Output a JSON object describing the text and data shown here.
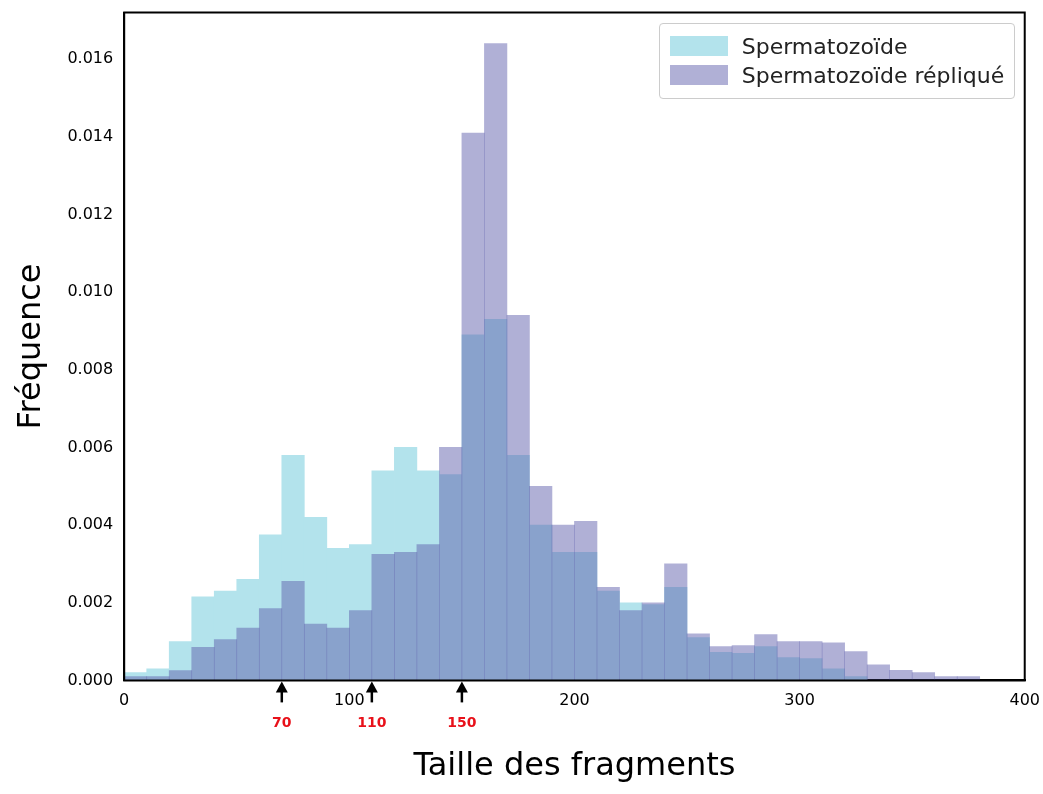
{
  "chart_data": {
    "type": "histogram",
    "xlabel": "Taille des fragments",
    "ylabel": "Fréquence",
    "bins": [
      0,
      10,
      20,
      30,
      40,
      50,
      60,
      70,
      80,
      90,
      100,
      110,
      120,
      130,
      140,
      150,
      160,
      170,
      180,
      190,
      200,
      210,
      220,
      230,
      240,
      250,
      260,
      270,
      280,
      290,
      300,
      310,
      320,
      330,
      340,
      350,
      360,
      370,
      380
    ],
    "series": [
      {
        "name": "Spermatozoïde",
        "color": "#b3e3ec",
        "values": [
          0.0002,
          0.0003,
          0.001,
          0.00215,
          0.0023,
          0.0026,
          0.00375,
          0.0058,
          0.0042,
          0.0034,
          0.0035,
          0.0054,
          0.006,
          0.0054,
          0.0053,
          0.0089,
          0.0093,
          0.0058,
          0.004,
          0.0033,
          0.0033,
          0.0023,
          0.002,
          0.00195,
          0.0024,
          0.0011,
          0.00072,
          0.0007,
          0.00087,
          0.00059,
          0.00056,
          0.0003,
          0.0001,
          0,
          0,
          0,
          0,
          0
        ]
      },
      {
        "name": "Spermatozoïde répliqué",
        "color": "#b0b0d6",
        "values": [
          0.0001,
          0.0001,
          0.00025,
          0.00085,
          0.00105,
          0.00135,
          0.00185,
          0.00255,
          0.00145,
          0.00135,
          0.0018,
          0.00325,
          0.0033,
          0.0035,
          0.006,
          0.0141,
          0.0164,
          0.0094,
          0.005,
          0.004,
          0.0041,
          0.0024,
          0.0018,
          0.002,
          0.003,
          0.0012,
          0.00087,
          0.0009,
          0.00118,
          0.001,
          0.001,
          0.00097,
          0.00074,
          0.0004,
          0.00026,
          0.0002,
          0.0001,
          0.0001
        ]
      }
    ],
    "xlim": [
      0,
      400
    ],
    "xticks": [
      0,
      100,
      200,
      300,
      400
    ],
    "ylim": [
      0,
      0.0172
    ],
    "yticks": [
      {
        "value": 0,
        "label": "0.000"
      },
      {
        "value": 0.002,
        "label": "0.002"
      },
      {
        "value": 0.004,
        "label": "0.004"
      },
      {
        "value": 0.006,
        "label": "0.006"
      },
      {
        "value": 0.008,
        "label": "0.008"
      },
      {
        "value": 0.01,
        "label": "0.010"
      },
      {
        "value": 0.012,
        "label": "0.012"
      },
      {
        "value": 0.014,
        "label": "0.014"
      },
      {
        "value": 0.016,
        "label": "0.016"
      }
    ],
    "annotations": [
      {
        "text": "70",
        "x": 70,
        "y": 0
      },
      {
        "text": "110",
        "x": 110,
        "y": 0
      },
      {
        "text": "150",
        "x": 150,
        "y": 0
      }
    ],
    "legend": "top right",
    "grid": false
  }
}
